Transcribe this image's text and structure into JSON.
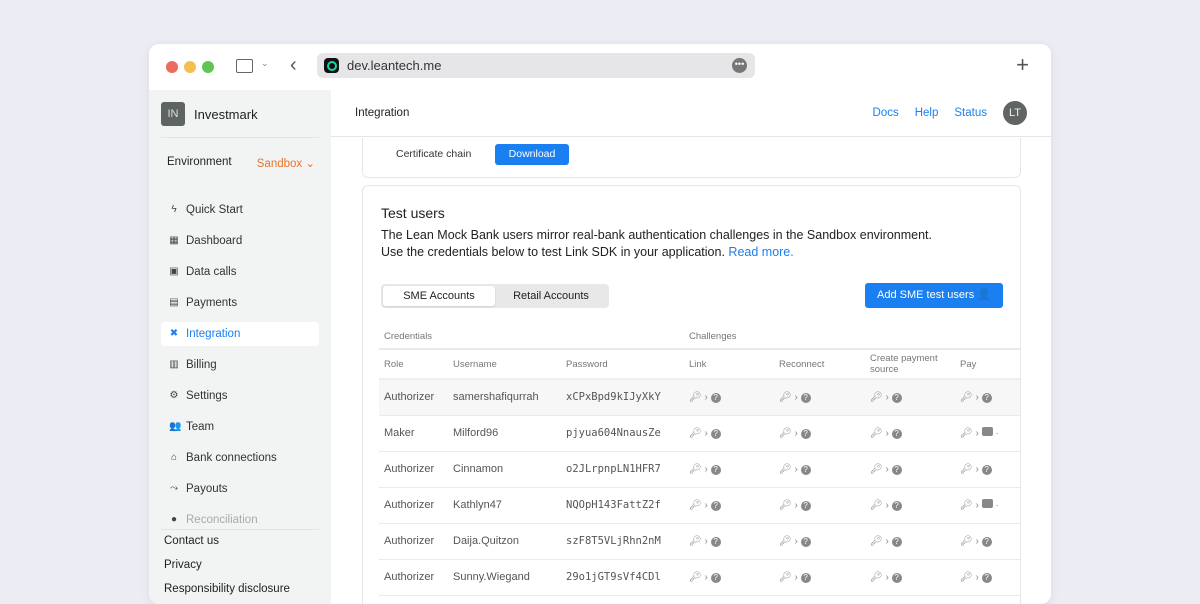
{
  "browser": {
    "url": "dev.leantech.me"
  },
  "sidebar": {
    "org_initials": "IN",
    "org_name": "Investmark",
    "env_label": "Environment",
    "env_value": "Sandbox",
    "items": [
      {
        "label": "Quick Start",
        "icon": "bolt-icon"
      },
      {
        "label": "Dashboard",
        "icon": "dashboard-icon"
      },
      {
        "label": "Data calls",
        "icon": "terminal-icon"
      },
      {
        "label": "Payments",
        "icon": "money-icon"
      },
      {
        "label": "Integration",
        "icon": "tools-icon",
        "active": true
      },
      {
        "label": "Billing",
        "icon": "receipt-icon"
      },
      {
        "label": "Settings",
        "icon": "gear-icon"
      },
      {
        "label": "Team",
        "icon": "team-icon"
      },
      {
        "label": "Bank connections",
        "icon": "bank-icon"
      },
      {
        "label": "Payouts",
        "icon": "payouts-icon"
      },
      {
        "label": "Reconciliation",
        "icon": "check-circle-icon"
      }
    ],
    "footer": [
      "Contact us",
      "Privacy",
      "Responsibility disclosure"
    ]
  },
  "header": {
    "title": "Integration",
    "links": [
      "Docs",
      "Help",
      "Status"
    ],
    "avatar": "LT"
  },
  "cert": {
    "label": "Certificate chain",
    "button": "Download"
  },
  "test_users": {
    "title": "Test users",
    "desc1": "The Lean Mock Bank users mirror real-bank authentication challenges in the Sandbox environment.",
    "desc2": "Use the credentials below to test Link SDK in your application.",
    "read_more": "Read more.",
    "tabs": [
      "SME Accounts",
      "Retail Accounts"
    ],
    "add_button": "Add SME test users",
    "group_headers": [
      "Credentials",
      "Challenges"
    ],
    "columns": [
      "Role",
      "Username",
      "Password",
      "Link",
      "Reconnect",
      "Create payment source",
      "Pay"
    ],
    "rows": [
      {
        "role": "Authorizer",
        "username": "samershafiqurrah",
        "password": "xCPxBpd9kIJyXkY",
        "pay": "question"
      },
      {
        "role": "Maker",
        "username": "Milford96",
        "password": "pjyua604NnausZe",
        "pay": "message"
      },
      {
        "role": "Authorizer",
        "username": "Cinnamon",
        "password": "o2JLrpnpLN1HFR7",
        "pay": "question"
      },
      {
        "role": "Authorizer",
        "username": "Kathlyn47",
        "password": "NQOpH143FattZ2f",
        "pay": "message"
      },
      {
        "role": "Authorizer",
        "username": "Daija.Quitzon",
        "password": "szF8T5VLjRhn2nM",
        "pay": "question"
      },
      {
        "role": "Authorizer",
        "username": "Sunny.Wiegand",
        "password": "29o1jGT9sVf4CDl",
        "pay": "question"
      }
    ]
  },
  "colors": {
    "accent": "#1a7ff0",
    "sandbox": "#e8742c"
  }
}
